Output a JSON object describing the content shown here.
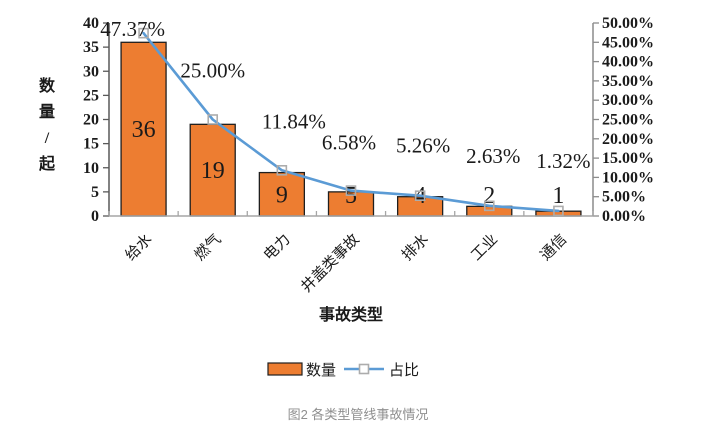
{
  "figure": {
    "caption": "图2 各类型管线事故情况"
  },
  "chart_data": {
    "type": "combo-bar-line",
    "categories": [
      "给水",
      "燃气",
      "电力",
      "井盖类事故",
      "排水",
      "工业",
      "通信"
    ],
    "series": [
      {
        "name": "数量",
        "type": "bar",
        "axis": "left",
        "values": [
          36,
          19,
          9,
          5,
          4,
          2,
          1
        ],
        "labels": [
          "36",
          "19",
          "9",
          "5",
          "4",
          "2",
          "1"
        ],
        "color": "#ED7D31"
      },
      {
        "name": "占比",
        "type": "line",
        "axis": "right",
        "values": [
          47.37,
          25.0,
          11.84,
          6.58,
          5.26,
          2.63,
          1.32
        ],
        "labels": [
          "47.37%",
          "25.00%",
          "11.84%",
          "6.58%",
          "5.26%",
          "2.63%",
          "1.32%"
        ],
        "color": "#5B9BD5"
      }
    ],
    "xlabel": "事故类型",
    "ylabel_left": "数量/起",
    "left_axis": {
      "min": 0,
      "max": 40,
      "step": 5,
      "tick_labels": [
        "0",
        "5",
        "10",
        "15",
        "20",
        "25",
        "30",
        "35",
        "40"
      ]
    },
    "right_axis": {
      "min": 0,
      "max": 50,
      "step": 5,
      "tick_labels": [
        "0.00%",
        "5.00%",
        "10.00%",
        "15.00%",
        "20.00%",
        "25.00%",
        "30.00%",
        "35.00%",
        "40.00%",
        "45.00%",
        "50.00%"
      ]
    },
    "legend": {
      "position": "bottom",
      "items": [
        "数量",
        "占比"
      ]
    },
    "grid": false,
    "colors": {
      "bar_fill": "#ED7D31",
      "bar_border": "#1F1F1F",
      "line": "#5B9BD5",
      "marker_border": "#ACACAC",
      "axis_line": "#8C8C8C",
      "text": "#1A1A1A",
      "caption": "#8F8F8F"
    }
  }
}
